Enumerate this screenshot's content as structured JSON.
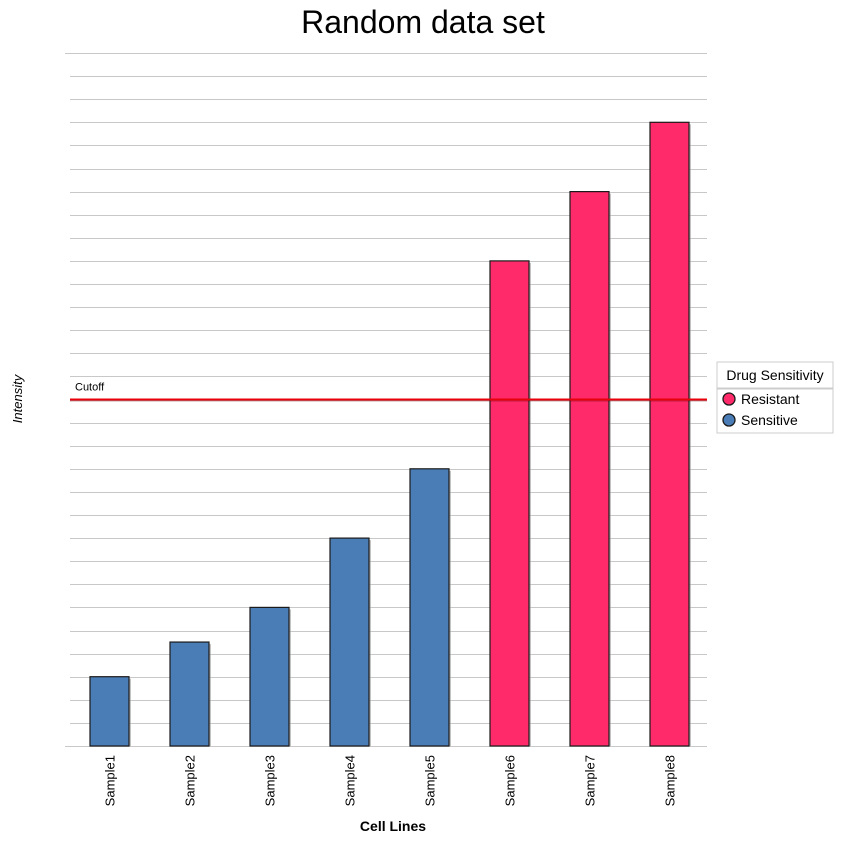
{
  "chart_data": {
    "type": "bar",
    "title": "Random data set",
    "xlabel": "Cell Lines",
    "ylabel": "Intensity",
    "categories": [
      "Sample1",
      "Sample2",
      "Sample3",
      "Sample4",
      "Sample5",
      "Sample6",
      "Sample7",
      "Sample8"
    ],
    "values": [
      3,
      4.5,
      6,
      9,
      12,
      21,
      24,
      27
    ],
    "groups": [
      "Sensitive",
      "Sensitive",
      "Sensitive",
      "Sensitive",
      "Sensitive",
      "Resistant",
      "Resistant",
      "Resistant"
    ],
    "ylim": [
      0,
      30
    ],
    "grid": true,
    "cutoff": {
      "label": "Cutoff",
      "value": 15,
      "color": "#e8000b"
    },
    "legend": {
      "title": "Drug Sensitivity",
      "placement": "right",
      "entries": [
        {
          "name": "Resistant",
          "color": "#ff2a6a"
        },
        {
          "name": "Sensitive",
          "color": "#4a7db5"
        }
      ]
    }
  }
}
